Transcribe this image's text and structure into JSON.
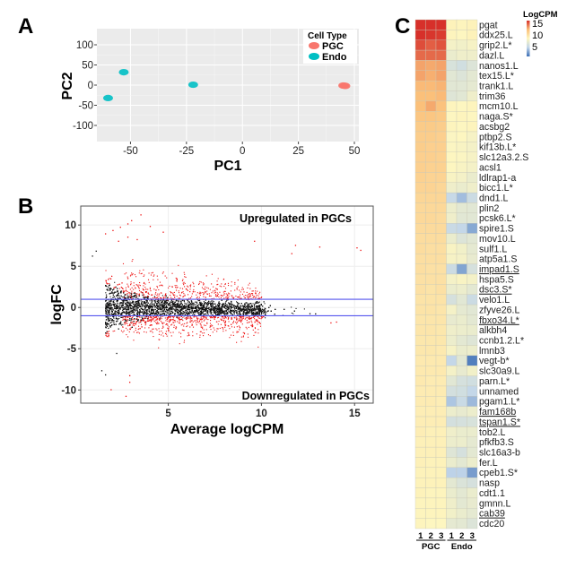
{
  "panels": {
    "a": "A",
    "b": "B",
    "c": "C"
  },
  "chart_data": [
    {
      "type": "scatter",
      "panel": "A",
      "xlabel": "PC1",
      "ylabel": "PC2",
      "xlim": [
        -65,
        52
      ],
      "ylim": [
        -140,
        140
      ],
      "xticks": [
        -50,
        -25,
        0,
        25,
        50
      ],
      "yticks": [
        -100,
        -50,
        0,
        50,
        100
      ],
      "grid": true,
      "background": "#ebebeb",
      "legend": {
        "title": "Cell Type",
        "position": "top-right"
      },
      "series": [
        {
          "name": "PGC",
          "color": "#f8766d",
          "points": [
            [
              45,
              -1
            ],
            [
              46,
              -2
            ],
            [
              45.5,
              -1.5
            ]
          ]
        },
        {
          "name": "Endo",
          "color": "#00bfc4",
          "points": [
            [
              -60,
              -32
            ],
            [
              -53,
              32
            ],
            [
              -22,
              1
            ]
          ]
        }
      ]
    },
    {
      "type": "scatter",
      "panel": "B",
      "xlabel": "Average logCPM",
      "ylabel": "logFC",
      "xlim": [
        0.3,
        16
      ],
      "ylim": [
        -11.6,
        12.3
      ],
      "xticks": [
        5,
        10,
        15
      ],
      "yticks": [
        -10,
        -5,
        0,
        5,
        10
      ],
      "grid": true,
      "threshold_lines": {
        "values": [
          1,
          -1
        ],
        "color": "#5555ee"
      },
      "annotations": {
        "up": "Upregulated in PGCs",
        "down": "Downregulated in PGCs"
      },
      "colors": {
        "significant": "#ee1111",
        "not_significant": "#111111"
      },
      "outlier_points_significant": [
        [
          1.6,
          9.0
        ],
        [
          2.0,
          9.4
        ],
        [
          2.4,
          9.8
        ],
        [
          2.8,
          10.2
        ],
        [
          3.0,
          10.6
        ],
        [
          3.5,
          11.3
        ],
        [
          4.0,
          9.9
        ],
        [
          4.7,
          9.2
        ],
        [
          9.6,
          8.1
        ],
        [
          11.8,
          7.6
        ],
        [
          11.6,
          6.6
        ],
        [
          13.1,
          7.4
        ],
        [
          15.1,
          7.3
        ],
        [
          15.3,
          7.0
        ],
        [
          2.3,
          8.1
        ],
        [
          2.8,
          8.6
        ],
        [
          3.3,
          8.3
        ],
        [
          1.9,
          -9.9
        ],
        [
          2.9,
          -8.2
        ],
        [
          2.9,
          -9.0
        ],
        [
          2.7,
          -10.7
        ],
        [
          13.7,
          -1.8
        ],
        [
          14.0,
          -1.7
        ]
      ],
      "outlier_points_not_significant": [
        [
          1.4,
          -7.6
        ],
        [
          1.6,
          -8.1
        ],
        [
          2.2,
          -5.5
        ],
        [
          1.1,
          6.9
        ],
        [
          0.9,
          6.3
        ]
      ]
    },
    {
      "type": "heatmap",
      "panel": "C",
      "legend_title": "LogCPM",
      "legend_ticks": [
        15,
        10,
        5
      ],
      "color_scale": {
        "5": "#3d6fb6",
        "7.5": "#c2d6ea",
        "10": "#fdf6c0",
        "12.5": "#fbc07a",
        "15": "#d7302a"
      },
      "columns": [
        "1",
        "2",
        "3",
        "1",
        "2",
        "3"
      ],
      "groups": [
        {
          "label": "PGC",
          "span": 3
        },
        {
          "label": "Endo",
          "span": 3
        }
      ],
      "rows": [
        {
          "gene": "pgat",
          "underline": false,
          "values": [
            15,
            15,
            15,
            10.2,
            10.1,
            10.2
          ]
        },
        {
          "gene": "ddx25.L",
          "underline": false,
          "values": [
            15,
            14.9,
            14.8,
            10.1,
            10,
            10.2
          ]
        },
        {
          "gene": "grip2.L*",
          "underline": false,
          "values": [
            14.5,
            14.2,
            14.4,
            9.6,
            9.5,
            9.7
          ]
        },
        {
          "gene": "dazl.L",
          "underline": false,
          "values": [
            14,
            14,
            14,
            9.2,
            9.4,
            9.4
          ]
        },
        {
          "gene": "nanos1.L",
          "underline": false,
          "values": [
            13,
            12.9,
            13,
            8.4,
            8.1,
            8.6
          ]
        },
        {
          "gene": "tex15.L*",
          "underline": false,
          "values": [
            13,
            12.8,
            13,
            8.8,
            8.6,
            8.9
          ]
        },
        {
          "gene": "trank1.L",
          "underline": false,
          "values": [
            12.6,
            12.6,
            12.7,
            8.8,
            8.8,
            9
          ]
        },
        {
          "gene": "trim36",
          "underline": false,
          "values": [
            12.5,
            12.5,
            12.6,
            8.7,
            8.8,
            9.4
          ]
        },
        {
          "gene": "mcm10.L",
          "underline": false,
          "values": [
            12.5,
            12.9,
            12.4,
            10.1,
            10,
            10.1
          ]
        },
        {
          "gene": "naga.S*",
          "underline": false,
          "values": [
            12.2,
            12.2,
            12.1,
            10,
            10.1,
            10
          ]
        },
        {
          "gene": "acsbg2",
          "underline": false,
          "values": [
            12,
            12,
            11.9,
            10.1,
            10,
            10.1
          ]
        },
        {
          "gene": "ptbp2.S",
          "underline": false,
          "values": [
            11.9,
            11.9,
            11.8,
            9.9,
            10,
            9.7
          ]
        },
        {
          "gene": "kif13b.L*",
          "underline": false,
          "values": [
            11.9,
            11.8,
            11.8,
            9.9,
            9.8,
            9.6
          ]
        },
        {
          "gene": "slc12a3.2.S",
          "underline": false,
          "values": [
            11.8,
            11.8,
            11.7,
            10,
            9.9,
            9.7
          ]
        },
        {
          "gene": "acsl1",
          "underline": false,
          "values": [
            11.8,
            11.7,
            11.7,
            10,
            9.8,
            9.6
          ]
        },
        {
          "gene": "ldlrap1-a",
          "underline": false,
          "values": [
            11.7,
            11.6,
            11.6,
            9.8,
            9.6,
            9.2
          ]
        },
        {
          "gene": "bicc1.L*",
          "underline": false,
          "values": [
            11.6,
            11.6,
            11.5,
            9.4,
            9.2,
            9.4
          ]
        },
        {
          "gene": "dnd1.L",
          "underline": false,
          "values": [
            11.5,
            11.5,
            11.5,
            7.7,
            6.9,
            7.9
          ]
        },
        {
          "gene": "plin2",
          "underline": false,
          "values": [
            11.4,
            11.4,
            11.4,
            9.3,
            8.9,
            8.8
          ]
        },
        {
          "gene": "pcsk6.L*",
          "underline": false,
          "values": [
            11.4,
            11.4,
            11.3,
            9.4,
            8.8,
            8.8
          ]
        },
        {
          "gene": "spire1.S",
          "underline": false,
          "values": [
            11.3,
            11.3,
            11.3,
            7.8,
            7.6,
            6.4
          ]
        },
        {
          "gene": "mov10.L",
          "underline": false,
          "values": [
            11.2,
            11.2,
            11.2,
            9.2,
            8.6,
            8.8
          ]
        },
        {
          "gene": "sulf1.L",
          "underline": false,
          "values": [
            11.2,
            11.1,
            11.1,
            9.8,
            9.5,
            9
          ]
        },
        {
          "gene": "atp5a1.S",
          "underline": false,
          "values": [
            11.1,
            11.1,
            11.1,
            9.7,
            9.6,
            9.1
          ]
        },
        {
          "gene": "impad1.S",
          "underline": true,
          "values": [
            11.1,
            11,
            11,
            7.9,
            6.3,
            8.3
          ]
        },
        {
          "gene": "hspa5.S",
          "underline": false,
          "values": [
            11,
            11,
            11,
            9.6,
            9.8,
            9.6
          ]
        },
        {
          "gene": "dsc3.S*",
          "underline": true,
          "values": [
            11,
            10.9,
            11,
            9.2,
            9.3,
            8.9
          ]
        },
        {
          "gene": "velo1.L",
          "underline": false,
          "values": [
            10.9,
            10.9,
            10.9,
            8.3,
            8.8,
            7.9
          ]
        },
        {
          "gene": "zfyve26.L",
          "underline": false,
          "values": [
            10.9,
            10.9,
            10.8,
            9.6,
            9,
            8.8
          ]
        },
        {
          "gene": "fbxo34.L*",
          "underline": true,
          "values": [
            10.8,
            10.8,
            10.8,
            9.1,
            9.2,
            8.9
          ]
        },
        {
          "gene": "alkbh4",
          "underline": false,
          "values": [
            10.8,
            10.8,
            10.7,
            9.4,
            9.3,
            9.2
          ]
        },
        {
          "gene": "ccnb1.2.L*",
          "underline": false,
          "values": [
            10.7,
            10.7,
            10.7,
            9.3,
            8.9,
            8.7
          ]
        },
        {
          "gene": "lmnb3",
          "underline": false,
          "values": [
            10.7,
            10.7,
            10.6,
            9.7,
            9.2,
            9.3
          ]
        },
        {
          "gene": "vegt-b*",
          "underline": false,
          "values": [
            10.6,
            10.6,
            10.6,
            7.6,
            8.8,
            5.4
          ]
        },
        {
          "gene": "slc30a9.L",
          "underline": false,
          "values": [
            10.6,
            10.6,
            10.6,
            9.6,
            9.1,
            9.5
          ]
        },
        {
          "gene": "parn.L*",
          "underline": false,
          "values": [
            10.6,
            10.5,
            10.5,
            8.8,
            8.3,
            8.1
          ]
        },
        {
          "gene": "unnamed",
          "underline": false,
          "values": [
            10.5,
            10.5,
            10.5,
            8.2,
            8.1,
            7.6
          ]
        },
        {
          "gene": "pgam1.L*",
          "underline": false,
          "values": [
            10.5,
            10.5,
            10.4,
            7.1,
            7.8,
            6.8
          ]
        },
        {
          "gene": "fam168b",
          "underline": true,
          "values": [
            10.4,
            10.4,
            10.4,
            9.3,
            9.1,
            9.3
          ]
        },
        {
          "gene": "tspan1.S*",
          "underline": true,
          "values": [
            10.4,
            10.4,
            10.4,
            8.2,
            8.3,
            8.4
          ]
        },
        {
          "gene": "tob2.L",
          "underline": false,
          "values": [
            10.4,
            10.3,
            10.3,
            9.4,
            9.2,
            9.2
          ]
        },
        {
          "gene": "pfkfb3.S",
          "underline": false,
          "values": [
            10.3,
            10.3,
            10.3,
            9.3,
            9.3,
            9
          ]
        },
        {
          "gene": "slc16a3-b",
          "underline": false,
          "values": [
            10.3,
            10.3,
            10.3,
            8.7,
            8.3,
            8.9
          ]
        },
        {
          "gene": "fer.L",
          "underline": false,
          "values": [
            10.3,
            10.2,
            10.2,
            9.2,
            8.9,
            9.3
          ]
        },
        {
          "gene": "cpeb1.S*",
          "underline": false,
          "values": [
            10.2,
            10.2,
            10.2,
            7.4,
            7.4,
            6.1
          ]
        },
        {
          "gene": "nasp",
          "underline": false,
          "values": [
            10.2,
            10.2,
            10.2,
            8.9,
            8.5,
            8.3
          ]
        },
        {
          "gene": "cdt1.1",
          "underline": false,
          "values": [
            10.2,
            10.1,
            10.1,
            9.2,
            8.9,
            9.2
          ]
        },
        {
          "gene": "gmnn.L",
          "underline": false,
          "values": [
            10.1,
            10.1,
            10.1,
            9.4,
            8.9,
            9.1
          ]
        },
        {
          "gene": "cab39",
          "underline": true,
          "values": [
            10.1,
            10.1,
            10.1,
            9.5,
            9.2,
            9
          ]
        },
        {
          "gene": "cdc20",
          "underline": false,
          "values": [
            10.1,
            10,
            10,
            9,
            8.9,
            8.6
          ]
        }
      ]
    }
  ]
}
